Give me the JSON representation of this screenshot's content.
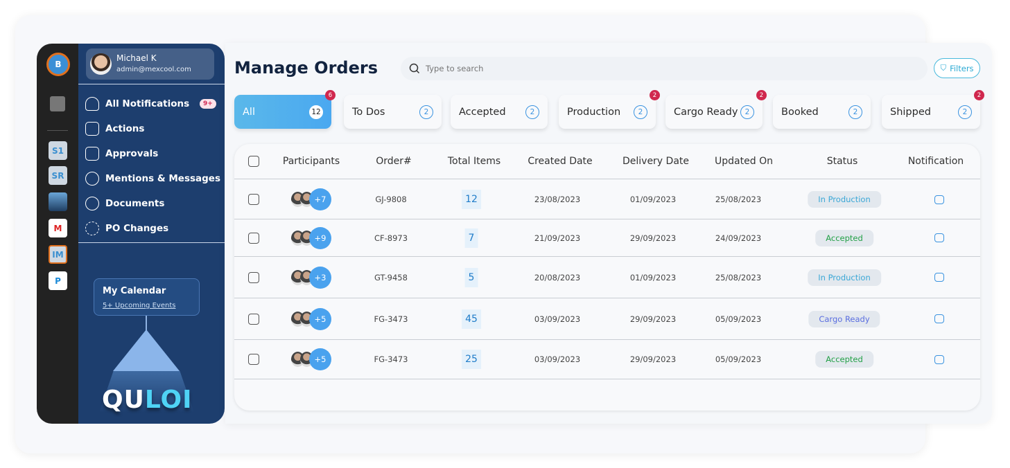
{
  "user": {
    "name": "Michael K",
    "email": "admin@mexcool.com"
  },
  "rail": {
    "apps": [
      "S1",
      "SR",
      "",
      "",
      "IM",
      ""
    ]
  },
  "sidebar": {
    "items": [
      {
        "label": "All Notifications",
        "icon": "bell-icon",
        "badge": "9+"
      },
      {
        "label": "Actions",
        "icon": "checkbox-icon"
      },
      {
        "label": "Approvals",
        "icon": "document-check-icon"
      },
      {
        "label": "Mentions & Messages",
        "icon": "chat-icon"
      },
      {
        "label": "Documents",
        "icon": "documents-icon"
      },
      {
        "label": "PO Changes",
        "icon": "exchange-icon"
      }
    ],
    "calendar": {
      "title": "My Calendar",
      "subtitle": "5+ Upcoming Events"
    },
    "brand": {
      "part1": "QU",
      "part2": "LOI"
    }
  },
  "header": {
    "title": "Manage Orders",
    "search_placeholder": "Type to search",
    "filters_label": "Filters"
  },
  "tabs": [
    {
      "label": "All",
      "count": "12",
      "alert": "6",
      "active": true
    },
    {
      "label": "To Dos",
      "count": "2"
    },
    {
      "label": "Accepted",
      "count": "2"
    },
    {
      "label": "Production",
      "count": "2",
      "alert": "2"
    },
    {
      "label": "Cargo Ready",
      "count": "2",
      "alert": "2"
    },
    {
      "label": "Booked",
      "count": "2"
    },
    {
      "label": "Shipped",
      "count": "2",
      "alert": "2"
    }
  ],
  "table": {
    "columns": [
      "Participants",
      "Order#",
      "Total Items",
      "Created Date",
      "Delivery Date",
      "Updated On",
      "Status",
      "Notification"
    ],
    "rows": [
      {
        "more": "+7",
        "order": "GJ-9808",
        "items": "12",
        "created": "23/08/2023",
        "delivery": "01/09/2023",
        "updated": "25/08/2023",
        "status": "In Production"
      },
      {
        "more": "+9",
        "order": "CF-8973",
        "items": "7",
        "created": "21/09/2023",
        "delivery": "29/09/2023",
        "updated": "24/09/2023",
        "status": "Accepted"
      },
      {
        "more": "+3",
        "order": "GT-9458",
        "items": "5",
        "created": "20/08/2023",
        "delivery": "01/09/2023",
        "updated": "25/08/2023",
        "status": "In Production"
      },
      {
        "more": "+5",
        "order": "FG-3473",
        "items": "45",
        "created": "03/09/2023",
        "delivery": "29/09/2023",
        "updated": "05/09/2023",
        "status": "Cargo Ready"
      },
      {
        "more": "+5",
        "order": "FG-3473",
        "items": "25",
        "created": "03/09/2023",
        "delivery": "29/09/2023",
        "updated": "05/09/2023",
        "status": "Accepted"
      }
    ]
  },
  "status_colors": {
    "In Production": "#3aa7d6",
    "Accepted": "#23a047",
    "Cargo Ready": "#5a6ee0"
  }
}
